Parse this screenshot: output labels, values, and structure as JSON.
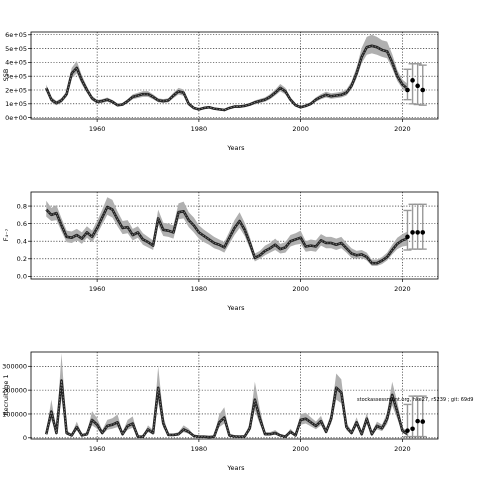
{
  "chart_data": [
    {
      "type": "line",
      "xlabel": "Years",
      "ylabel": "SSB",
      "xlim": [
        1947,
        2027
      ],
      "ylim": [
        -10000,
        620000
      ],
      "xticks": [
        1960,
        1980,
        2000,
        2020
      ],
      "yticks": [
        0,
        100000,
        200000,
        300000,
        400000,
        500000,
        600000
      ],
      "ytick_labels": [
        "0e+00",
        "1e+05",
        "2e+05",
        "3e+05",
        "4e+05",
        "5e+05",
        "6e+05"
      ],
      "grid": true,
      "x": [
        1950,
        1951,
        1952,
        1953,
        1954,
        1955,
        1956,
        1957,
        1958,
        1959,
        1960,
        1961,
        1962,
        1963,
        1964,
        1965,
        1966,
        1967,
        1968,
        1969,
        1970,
        1971,
        1972,
        1973,
        1974,
        1975,
        1976,
        1977,
        1978,
        1979,
        1980,
        1981,
        1982,
        1983,
        1984,
        1985,
        1986,
        1987,
        1988,
        1989,
        1990,
        1991,
        1992,
        1993,
        1994,
        1995,
        1996,
        1997,
        1998,
        1999,
        2000,
        2001,
        2002,
        2003,
        2004,
        2005,
        2006,
        2007,
        2008,
        2009,
        2010,
        2011,
        2012,
        2013,
        2014,
        2015,
        2016,
        2017,
        2018,
        2019,
        2020,
        2021
      ],
      "series": [
        {
          "values": [
            215000,
            130000,
            105000,
            125000,
            170000,
            320000,
            360000,
            270000,
            200000,
            140000,
            115000,
            120000,
            130000,
            115000,
            90000,
            95000,
            120000,
            150000,
            160000,
            170000,
            170000,
            150000,
            125000,
            120000,
            125000,
            160000,
            190000,
            180000,
            100000,
            70000,
            60000,
            70000,
            75000,
            65000,
            60000,
            55000,
            70000,
            80000,
            80000,
            85000,
            95000,
            110000,
            120000,
            130000,
            150000,
            180000,
            215000,
            190000,
            130000,
            90000,
            75000,
            85000,
            100000,
            130000,
            150000,
            165000,
            155000,
            160000,
            165000,
            180000,
            230000,
            320000,
            440000,
            510000,
            520000,
            510000,
            490000,
            480000,
            400000,
            300000,
            240000,
            210000
          ],
          "lower": [
            190000,
            110000,
            90000,
            108000,
            150000,
            285000,
            320000,
            240000,
            178000,
            124000,
            102000,
            106000,
            115000,
            102000,
            80000,
            84000,
            106000,
            133000,
            142000,
            150000,
            150000,
            133000,
            111000,
            106000,
            110000,
            141000,
            167000,
            158000,
            88000,
            61000,
            52000,
            61000,
            66000,
            57000,
            52000,
            48000,
            61000,
            70000,
            70000,
            75000,
            84000,
            97000,
            106000,
            115000,
            133000,
            160000,
            190000,
            168000,
            115000,
            79000,
            66000,
            75000,
            88000,
            115000,
            133000,
            146000,
            137000,
            141000,
            146000,
            159000,
            205000,
            285000,
            395000,
            455000,
            465000,
            455000,
            440000,
            430000,
            355000,
            265000,
            210000,
            180000
          ],
          "upper": [
            240000,
            150000,
            120000,
            142000,
            190000,
            360000,
            410000,
            305000,
            225000,
            158000,
            128000,
            134000,
            146000,
            128000,
            100000,
            106000,
            134000,
            168000,
            180000,
            192000,
            192000,
            168000,
            140000,
            134000,
            140000,
            180000,
            215000,
            204000,
            113000,
            79000,
            68000,
            79000,
            85000,
            73000,
            68000,
            62000,
            79000,
            90000,
            90000,
            96000,
            107000,
            124000,
            136000,
            147000,
            170000,
            203000,
            243000,
            215000,
            147000,
            102000,
            85000,
            96000,
            113000,
            147000,
            170000,
            187000,
            176000,
            181000,
            187000,
            204000,
            262000,
            365000,
            505000,
            585000,
            600000,
            585000,
            560000,
            550000,
            460000,
            345000,
            275000,
            245000
          ]
        }
      ],
      "forecast_points": {
        "x": [
          2021,
          2022,
          2023,
          2024
        ],
        "y": [
          200000,
          270000,
          230000,
          200000
        ]
      },
      "forecast_intervals": [
        {
          "x": 2021,
          "low": 130000,
          "high": 350000
        },
        {
          "x": 2022,
          "low": 100000,
          "high": 390000
        },
        {
          "x": 2023,
          "low": 95000,
          "high": 390000
        },
        {
          "x": 2024,
          "low": 90000,
          "high": 380000
        }
      ]
    },
    {
      "type": "line",
      "xlabel": "Years",
      "ylabel": "F₄₋₇",
      "xlim": [
        1947,
        2027
      ],
      "ylim": [
        -0.03,
        0.96
      ],
      "xticks": [
        1960,
        1980,
        2000,
        2020
      ],
      "yticks": [
        0.0,
        0.2,
        0.4,
        0.6,
        0.8
      ],
      "ytick_labels": [
        "0.0",
        "0.2",
        "0.4",
        "0.6",
        "0.8"
      ],
      "grid": true,
      "x": [
        1950,
        1951,
        1952,
        1953,
        1954,
        1955,
        1956,
        1957,
        1958,
        1959,
        1960,
        1961,
        1962,
        1963,
        1964,
        1965,
        1966,
        1967,
        1968,
        1969,
        1970,
        1971,
        1972,
        1973,
        1974,
        1975,
        1976,
        1977,
        1978,
        1979,
        1980,
        1981,
        1982,
        1983,
        1984,
        1985,
        1986,
        1987,
        1988,
        1989,
        1990,
        1991,
        1992,
        1993,
        1994,
        1995,
        1996,
        1997,
        1998,
        1999,
        2000,
        2001,
        2002,
        2003,
        2004,
        2005,
        2006,
        2007,
        2008,
        2009,
        2010,
        2011,
        2012,
        2013,
        2014,
        2015,
        2016,
        2017,
        2018,
        2019,
        2020,
        2021
      ],
      "series": [
        {
          "values": [
            0.76,
            0.7,
            0.72,
            0.58,
            0.45,
            0.44,
            0.47,
            0.43,
            0.5,
            0.45,
            0.55,
            0.67,
            0.79,
            0.76,
            0.65,
            0.55,
            0.56,
            0.47,
            0.5,
            0.42,
            0.39,
            0.35,
            0.66,
            0.53,
            0.52,
            0.5,
            0.73,
            0.74,
            0.64,
            0.58,
            0.5,
            0.46,
            0.42,
            0.38,
            0.36,
            0.33,
            0.44,
            0.55,
            0.63,
            0.53,
            0.38,
            0.21,
            0.24,
            0.29,
            0.32,
            0.36,
            0.31,
            0.33,
            0.4,
            0.42,
            0.44,
            0.34,
            0.35,
            0.34,
            0.41,
            0.38,
            0.38,
            0.36,
            0.38,
            0.32,
            0.26,
            0.24,
            0.25,
            0.22,
            0.15,
            0.15,
            0.18,
            0.22,
            0.3,
            0.37,
            0.41,
            0.43
          ],
          "lower": [
            0.68,
            0.63,
            0.64,
            0.51,
            0.39,
            0.38,
            0.41,
            0.37,
            0.44,
            0.39,
            0.48,
            0.59,
            0.7,
            0.67,
            0.57,
            0.48,
            0.49,
            0.41,
            0.44,
            0.36,
            0.33,
            0.3,
            0.58,
            0.46,
            0.45,
            0.43,
            0.65,
            0.66,
            0.56,
            0.5,
            0.43,
            0.39,
            0.36,
            0.32,
            0.3,
            0.27,
            0.37,
            0.47,
            0.55,
            0.46,
            0.32,
            0.17,
            0.2,
            0.24,
            0.27,
            0.3,
            0.26,
            0.27,
            0.34,
            0.36,
            0.37,
            0.28,
            0.29,
            0.28,
            0.35,
            0.32,
            0.32,
            0.3,
            0.32,
            0.27,
            0.21,
            0.2,
            0.21,
            0.18,
            0.12,
            0.12,
            0.14,
            0.18,
            0.25,
            0.31,
            0.34,
            0.35
          ],
          "upper": [
            0.86,
            0.78,
            0.81,
            0.66,
            0.52,
            0.51,
            0.54,
            0.5,
            0.57,
            0.52,
            0.63,
            0.76,
            0.9,
            0.87,
            0.74,
            0.63,
            0.64,
            0.54,
            0.57,
            0.49,
            0.45,
            0.41,
            0.76,
            0.61,
            0.6,
            0.58,
            0.83,
            0.85,
            0.73,
            0.67,
            0.58,
            0.53,
            0.49,
            0.45,
            0.42,
            0.39,
            0.51,
            0.64,
            0.73,
            0.61,
            0.45,
            0.26,
            0.29,
            0.35,
            0.38,
            0.43,
            0.37,
            0.39,
            0.47,
            0.49,
            0.52,
            0.4,
            0.42,
            0.41,
            0.48,
            0.45,
            0.45,
            0.43,
            0.45,
            0.38,
            0.32,
            0.29,
            0.3,
            0.27,
            0.19,
            0.19,
            0.22,
            0.27,
            0.36,
            0.44,
            0.48,
            0.51
          ]
        }
      ],
      "forecast_points": {
        "x": [
          2021,
          2022,
          2023,
          2024
        ],
        "y": [
          0.45,
          0.5,
          0.5,
          0.5
        ]
      },
      "forecast_intervals": [
        {
          "x": 2021,
          "low": 0.3,
          "high": 0.75
        },
        {
          "x": 2022,
          "low": 0.31,
          "high": 0.82
        },
        {
          "x": 2023,
          "low": 0.31,
          "high": 0.82
        },
        {
          "x": 2024,
          "low": 0.31,
          "high": 0.82
        }
      ]
    },
    {
      "type": "line",
      "xlabel": "Years",
      "ylabel": "Recruitage 1",
      "xlim": [
        1947,
        2027
      ],
      "ylim": [
        -5000,
        360000
      ],
      "xticks": [
        1960,
        1980,
        2000,
        2020
      ],
      "yticks": [
        0,
        100000,
        200000,
        300000
      ],
      "ytick_labels": [
        "0",
        "100000",
        "200000",
        "300000"
      ],
      "grid": true,
      "annotation": "stockassessment.org, hke27, r5239 ; git: 69d9",
      "x": [
        1950,
        1951,
        1952,
        1953,
        1954,
        1955,
        1956,
        1957,
        1958,
        1959,
        1960,
        1961,
        1962,
        1963,
        1964,
        1965,
        1966,
        1967,
        1968,
        1969,
        1970,
        1971,
        1972,
        1973,
        1974,
        1975,
        1976,
        1977,
        1978,
        1979,
        1980,
        1981,
        1982,
        1983,
        1984,
        1985,
        1986,
        1987,
        1988,
        1989,
        1990,
        1991,
        1992,
        1993,
        1994,
        1995,
        1996,
        1997,
        1998,
        1999,
        2000,
        2001,
        2002,
        2003,
        2004,
        2005,
        2006,
        2007,
        2008,
        2009,
        2010,
        2011,
        2012,
        2013,
        2014,
        2015,
        2016,
        2017,
        2018,
        2019,
        2020,
        2021
      ],
      "series": [
        {
          "values": [
            15000,
            110000,
            20000,
            240000,
            20000,
            10000,
            45000,
            10000,
            15000,
            75000,
            55000,
            20000,
            50000,
            55000,
            65000,
            15000,
            50000,
            60000,
            5000,
            5000,
            35000,
            20000,
            210000,
            60000,
            12000,
            12000,
            15000,
            35000,
            25000,
            8000,
            5000,
            5000,
            3000,
            5000,
            65000,
            85000,
            10000,
            6000,
            5000,
            6000,
            40000,
            160000,
            80000,
            15000,
            15000,
            20000,
            10000,
            5000,
            25000,
            10000,
            75000,
            80000,
            65000,
            50000,
            70000,
            25000,
            80000,
            210000,
            190000,
            45000,
            20000,
            65000,
            15000,
            80000,
            15000,
            50000,
            40000,
            80000,
            180000,
            110000,
            30000,
            15000
          ],
          "lower": [
            10000,
            75000,
            13000,
            165000,
            13000,
            7000,
            31000,
            7000,
            10000,
            52000,
            38000,
            13000,
            34000,
            38000,
            45000,
            10000,
            34000,
            42000,
            3000,
            3000,
            24000,
            13000,
            150000,
            42000,
            8000,
            8000,
            10000,
            24000,
            17000,
            5000,
            3000,
            3000,
            2000,
            3000,
            45000,
            60000,
            7000,
            4000,
            3000,
            4000,
            28000,
            115000,
            56000,
            10000,
            10000,
            13000,
            7000,
            3000,
            17000,
            7000,
            55000,
            60000,
            48000,
            36000,
            52000,
            17000,
            60000,
            160000,
            145000,
            32000,
            13000,
            48000,
            10000,
            58000,
            10000,
            36000,
            28000,
            58000,
            135000,
            80000,
            20000,
            10000
          ],
          "upper": [
            24000,
            160000,
            32000,
            355000,
            32000,
            16000,
            68000,
            16000,
            24000,
            112000,
            82000,
            32000,
            75000,
            82000,
            98000,
            24000,
            75000,
            90000,
            8000,
            8000,
            52000,
            32000,
            300000,
            90000,
            18000,
            18000,
            24000,
            52000,
            38000,
            12000,
            8000,
            8000,
            5000,
            8000,
            98000,
            128000,
            16000,
            9000,
            8000,
            9000,
            60000,
            235000,
            120000,
            24000,
            24000,
            32000,
            16000,
            8000,
            38000,
            16000,
            100000,
            105000,
            86000,
            68000,
            92000,
            38000,
            105000,
            270000,
            245000,
            62000,
            30000,
            86000,
            24000,
            105000,
            24000,
            68000,
            55000,
            105000,
            235000,
            150000,
            45000,
            25000
          ]
        }
      ],
      "forecast_points": {
        "x": [
          2021,
          2022,
          2023,
          2024
        ],
        "y": [
          30000,
          38000,
          70000,
          68000
        ]
      },
      "forecast_intervals": [
        {
          "x": 2021,
          "low": 5000,
          "high": 140000
        },
        {
          "x": 2022,
          "low": 5000,
          "high": 175000
        },
        {
          "x": 2023,
          "low": 5000,
          "high": 175000
        },
        {
          "x": 2024,
          "low": 5000,
          "high": 175000
        }
      ]
    }
  ],
  "panels": [
    {
      "ylabel": "SSB",
      "xlabel": "Years"
    },
    {
      "ylabel": "F₄₋₇",
      "xlabel": "Years"
    },
    {
      "ylabel": "Recruitage 1",
      "xlabel": "Years",
      "annotation": "stockassessment.org, hke27, r5239 ; git: 69d9"
    }
  ]
}
